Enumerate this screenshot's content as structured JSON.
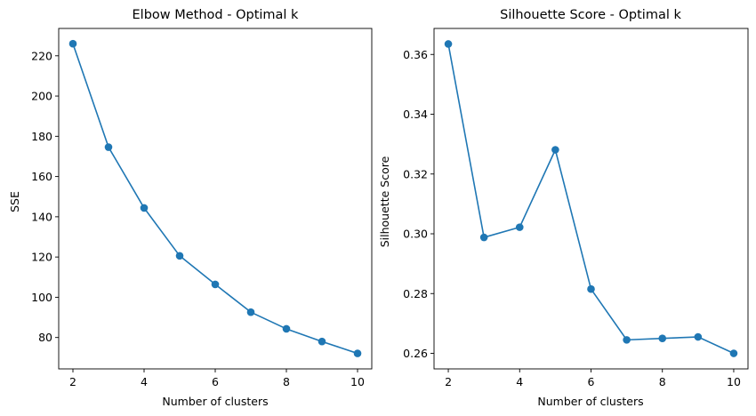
{
  "chart_data": [
    {
      "type": "line",
      "title": "Elbow Method - Optimal k",
      "xlabel": "Number of clusters",
      "ylabel": "SSE",
      "x": [
        2,
        3,
        4,
        5,
        6,
        7,
        8,
        9,
        10
      ],
      "series": [
        {
          "values": [
            226.0,
            174.6,
            144.4,
            120.6,
            106.4,
            92.6,
            84.3,
            78.0,
            72.1
          ]
        }
      ],
      "xlim": [
        1.6,
        10.4
      ],
      "ylim": [
        64.4,
        233.6
      ],
      "xticks": [
        2,
        4,
        6,
        8,
        10
      ],
      "yticks": [
        80,
        100,
        120,
        140,
        160,
        180,
        200,
        220
      ],
      "color": "#1f77b4",
      "marker": "circle",
      "grid": false,
      "legend": "none"
    },
    {
      "type": "line",
      "title": "Silhouette Score - Optimal k",
      "xlabel": "Number of clusters",
      "ylabel": "Silhouette Score",
      "x": [
        2,
        3,
        4,
        5,
        6,
        7,
        8,
        9,
        10
      ],
      "series": [
        {
          "values": [
            0.3635,
            0.2988,
            0.3022,
            0.3281,
            0.2815,
            0.2645,
            0.265,
            0.2655,
            0.26
          ]
        }
      ],
      "xlim": [
        1.6,
        10.4
      ],
      "ylim": [
        0.2548,
        0.3687
      ],
      "xticks": [
        2,
        4,
        6,
        8,
        10
      ],
      "yticks": [
        "0.26",
        "0.28",
        "0.30",
        "0.32",
        "0.34",
        "0.36"
      ],
      "color": "#1f77b4",
      "marker": "circle",
      "grid": false,
      "legend": "none"
    }
  ]
}
